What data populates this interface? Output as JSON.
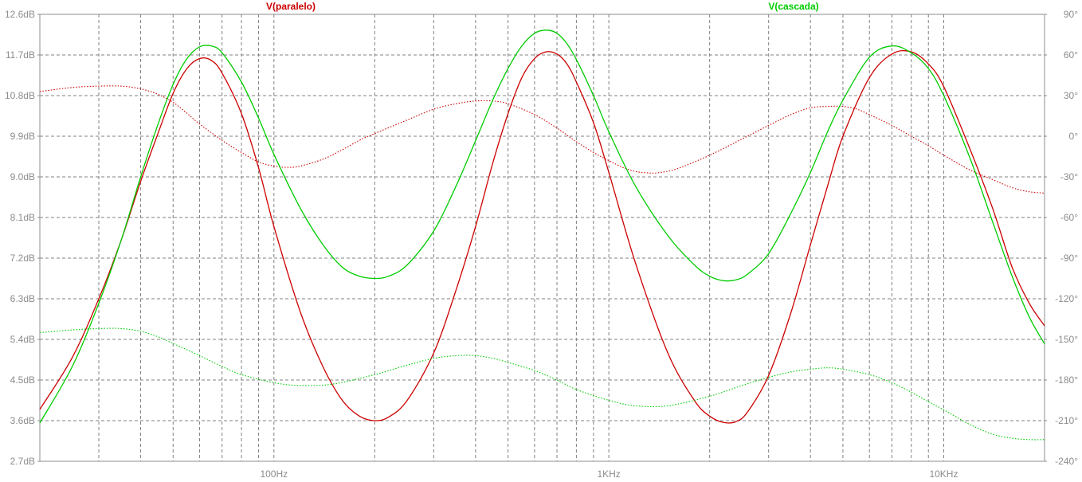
{
  "chart_data": {
    "type": "line",
    "title": "",
    "xlabel": "",
    "ylabel": "",
    "x_scale": "log",
    "xlim": [
      20,
      20000
    ],
    "ylim_left": [
      2.7,
      12.6
    ],
    "ylim_right": [
      -240,
      90
    ],
    "grid": true,
    "legend_position": "top",
    "x_ticks": [
      {
        "value": 100,
        "label": "100Hz"
      },
      {
        "value": 1000,
        "label": "1KHz"
      },
      {
        "value": 10000,
        "label": "10KHz"
      }
    ],
    "y_left_ticks": [
      {
        "value": 2.7,
        "label": "2.7dB"
      },
      {
        "value": 3.6,
        "label": "3.6dB"
      },
      {
        "value": 4.5,
        "label": "4.5dB"
      },
      {
        "value": 5.4,
        "label": "5.4dB"
      },
      {
        "value": 6.3,
        "label": "6.3dB"
      },
      {
        "value": 7.2,
        "label": "7.2dB"
      },
      {
        "value": 8.1,
        "label": "8.1dB"
      },
      {
        "value": 9.0,
        "label": "9.0dB"
      },
      {
        "value": 9.9,
        "label": "9.9dB"
      },
      {
        "value": 10.8,
        "label": "10.8dB"
      },
      {
        "value": 11.7,
        "label": "11.7dB"
      },
      {
        "value": 12.6,
        "label": "12.6dB"
      }
    ],
    "y_right_ticks": [
      {
        "value": -240,
        "label": "-240°"
      },
      {
        "value": -210,
        "label": "-210°"
      },
      {
        "value": -180,
        "label": "-180°"
      },
      {
        "value": -150,
        "label": "-150°"
      },
      {
        "value": -120,
        "label": "-120°"
      },
      {
        "value": -90,
        "label": "-90°"
      },
      {
        "value": -60,
        "label": "-60°"
      },
      {
        "value": -30,
        "label": "-30°"
      },
      {
        "value": 0,
        "label": "0°"
      },
      {
        "value": 30,
        "label": "30°"
      },
      {
        "value": 60,
        "label": "60°"
      },
      {
        "value": 90,
        "label": "90°"
      }
    ],
    "series": [
      {
        "name": "V(paralelo)",
        "color": "#cc0000",
        "magnitude_db": [
          [
            20,
            3.85
          ],
          [
            25,
            5.0
          ],
          [
            30,
            6.3
          ],
          [
            35,
            7.6
          ],
          [
            40,
            8.9
          ],
          [
            45,
            9.95
          ],
          [
            50,
            10.85
          ],
          [
            55,
            11.4
          ],
          [
            60,
            11.62
          ],
          [
            65,
            11.58
          ],
          [
            70,
            11.3
          ],
          [
            80,
            10.4
          ],
          [
            90,
            9.2
          ],
          [
            100,
            7.9
          ],
          [
            120,
            6.0
          ],
          [
            140,
            4.8
          ],
          [
            160,
            4.05
          ],
          [
            180,
            3.7
          ],
          [
            200,
            3.6
          ],
          [
            220,
            3.68
          ],
          [
            250,
            4.05
          ],
          [
            300,
            5.1
          ],
          [
            350,
            6.5
          ],
          [
            400,
            7.9
          ],
          [
            450,
            9.3
          ],
          [
            500,
            10.4
          ],
          [
            550,
            11.2
          ],
          [
            600,
            11.62
          ],
          [
            650,
            11.77
          ],
          [
            700,
            11.72
          ],
          [
            750,
            11.5
          ],
          [
            800,
            11.1
          ],
          [
            900,
            10.2
          ],
          [
            1000,
            9.1
          ],
          [
            1200,
            7.1
          ],
          [
            1500,
            5.1
          ],
          [
            1800,
            4.05
          ],
          [
            2000,
            3.7
          ],
          [
            2200,
            3.56
          ],
          [
            2400,
            3.58
          ],
          [
            2600,
            3.8
          ],
          [
            3000,
            4.6
          ],
          [
            3500,
            6.0
          ],
          [
            4000,
            7.5
          ],
          [
            4500,
            8.8
          ],
          [
            5000,
            9.9
          ],
          [
            6000,
            11.2
          ],
          [
            7000,
            11.72
          ],
          [
            8000,
            11.77
          ],
          [
            9000,
            11.5
          ],
          [
            10000,
            11.0
          ],
          [
            12000,
            9.6
          ],
          [
            14000,
            8.3
          ],
          [
            16000,
            7.0
          ],
          [
            18000,
            6.2
          ],
          [
            20000,
            5.7
          ]
        ],
        "phase_deg": [
          [
            20,
            33
          ],
          [
            25,
            36
          ],
          [
            30,
            37
          ],
          [
            35,
            37
          ],
          [
            40,
            35
          ],
          [
            45,
            31
          ],
          [
            50,
            25
          ],
          [
            55,
            17
          ],
          [
            60,
            9
          ],
          [
            70,
            -3
          ],
          [
            80,
            -12
          ],
          [
            90,
            -19
          ],
          [
            100,
            -22
          ],
          [
            110,
            -23
          ],
          [
            120,
            -22
          ],
          [
            140,
            -17
          ],
          [
            160,
            -10
          ],
          [
            180,
            -3
          ],
          [
            200,
            2
          ],
          [
            250,
            12
          ],
          [
            300,
            20
          ],
          [
            350,
            24
          ],
          [
            400,
            26
          ],
          [
            450,
            26
          ],
          [
            500,
            24
          ],
          [
            600,
            16
          ],
          [
            700,
            6
          ],
          [
            800,
            -4
          ],
          [
            900,
            -12
          ],
          [
            1000,
            -18
          ],
          [
            1100,
            -23
          ],
          [
            1200,
            -26
          ],
          [
            1300,
            -27
          ],
          [
            1400,
            -27
          ],
          [
            1600,
            -24
          ],
          [
            2000,
            -14
          ],
          [
            2500,
            -2
          ],
          [
            3000,
            8
          ],
          [
            3500,
            16
          ],
          [
            4000,
            21
          ],
          [
            4500,
            22
          ],
          [
            5000,
            22
          ],
          [
            5500,
            20
          ],
          [
            6000,
            16
          ],
          [
            7000,
            8
          ],
          [
            8000,
            0
          ],
          [
            9000,
            -7
          ],
          [
            10000,
            -14
          ],
          [
            12000,
            -25
          ],
          [
            14000,
            -32
          ],
          [
            16000,
            -38
          ],
          [
            18000,
            -41
          ],
          [
            20000,
            -42
          ]
        ]
      },
      {
        "name": "V(cascada)",
        "color": "#00cc00",
        "magnitude_db": [
          [
            20,
            3.55
          ],
          [
            25,
            4.8
          ],
          [
            30,
            6.2
          ],
          [
            35,
            7.6
          ],
          [
            40,
            9.0
          ],
          [
            45,
            10.15
          ],
          [
            50,
            11.05
          ],
          [
            55,
            11.62
          ],
          [
            60,
            11.88
          ],
          [
            65,
            11.9
          ],
          [
            70,
            11.75
          ],
          [
            80,
            11.1
          ],
          [
            90,
            10.3
          ],
          [
            100,
            9.5
          ],
          [
            120,
            8.3
          ],
          [
            140,
            7.5
          ],
          [
            160,
            7.0
          ],
          [
            180,
            6.8
          ],
          [
            200,
            6.75
          ],
          [
            220,
            6.8
          ],
          [
            250,
            7.05
          ],
          [
            300,
            7.8
          ],
          [
            350,
            8.8
          ],
          [
            400,
            9.8
          ],
          [
            450,
            10.7
          ],
          [
            500,
            11.4
          ],
          [
            550,
            11.9
          ],
          [
            600,
            12.18
          ],
          [
            650,
            12.25
          ],
          [
            700,
            12.18
          ],
          [
            750,
            11.95
          ],
          [
            800,
            11.6
          ],
          [
            900,
            10.8
          ],
          [
            1000,
            10.0
          ],
          [
            1200,
            8.8
          ],
          [
            1500,
            7.7
          ],
          [
            1800,
            7.05
          ],
          [
            2000,
            6.8
          ],
          [
            2200,
            6.7
          ],
          [
            2400,
            6.72
          ],
          [
            2600,
            6.85
          ],
          [
            3000,
            7.3
          ],
          [
            3500,
            8.2
          ],
          [
            4000,
            9.1
          ],
          [
            4500,
            10.0
          ],
          [
            5000,
            10.7
          ],
          [
            6000,
            11.65
          ],
          [
            7000,
            11.9
          ],
          [
            8000,
            11.75
          ],
          [
            9000,
            11.4
          ],
          [
            10000,
            10.8
          ],
          [
            12000,
            9.4
          ],
          [
            14000,
            8.0
          ],
          [
            16000,
            6.8
          ],
          [
            18000,
            5.9
          ],
          [
            20000,
            5.3
          ]
        ],
        "phase_deg": [
          [
            20,
            -145
          ],
          [
            25,
            -143
          ],
          [
            30,
            -142
          ],
          [
            35,
            -142
          ],
          [
            40,
            -144
          ],
          [
            45,
            -148
          ],
          [
            50,
            -153
          ],
          [
            60,
            -162
          ],
          [
            70,
            -170
          ],
          [
            80,
            -176
          ],
          [
            100,
            -182
          ],
          [
            120,
            -184
          ],
          [
            150,
            -183
          ],
          [
            200,
            -176
          ],
          [
            250,
            -169
          ],
          [
            300,
            -164
          ],
          [
            350,
            -162
          ],
          [
            400,
            -162
          ],
          [
            450,
            -164
          ],
          [
            500,
            -167
          ],
          [
            600,
            -173
          ],
          [
            700,
            -180
          ],
          [
            800,
            -187
          ],
          [
            1000,
            -195
          ],
          [
            1200,
            -199
          ],
          [
            1500,
            -199
          ],
          [
            2000,
            -192
          ],
          [
            2500,
            -184
          ],
          [
            3000,
            -178
          ],
          [
            3500,
            -174
          ],
          [
            4000,
            -172
          ],
          [
            4500,
            -171
          ],
          [
            5000,
            -172
          ],
          [
            6000,
            -176
          ],
          [
            7000,
            -182
          ],
          [
            8000,
            -189
          ],
          [
            9000,
            -196
          ],
          [
            10000,
            -202
          ],
          [
            12000,
            -213
          ],
          [
            14000,
            -220
          ],
          [
            16000,
            -223
          ],
          [
            18000,
            -224
          ],
          [
            20000,
            -224
          ]
        ]
      }
    ]
  }
}
